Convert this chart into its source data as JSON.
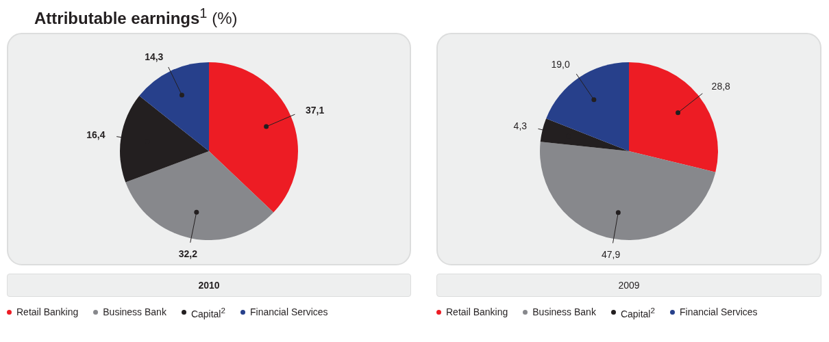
{
  "chart_data": [
    {
      "type": "pie",
      "title": "Attributable earnings$^{1}$ (%)",
      "xlabel": "2010",
      "categories": [
        "Retail Banking",
        "Business Bank",
        "Capital$^{2}$",
        "Financial Services"
      ],
      "values": [
        37.1,
        32.2,
        16.4,
        14.3
      ],
      "value_labels": [
        "37,1",
        "32,2",
        "16,4",
        "14,3"
      ],
      "colors": [
        "#ed1c24",
        "#87888c",
        "#231f20",
        "#27408b"
      ],
      "legend": "bottom"
    },
    {
      "type": "pie",
      "xlabel": "2009",
      "categories": [
        "Retail Banking",
        "Business Bank",
        "Capital$^{2}$",
        "Financial Services"
      ],
      "values": [
        28.8,
        47.9,
        4.3,
        19.0
      ],
      "value_labels": [
        "28,8",
        "47,9",
        "4,3",
        "19,0"
      ],
      "colors": [
        "#ed1c24",
        "#87888c",
        "#231f20",
        "#27408b"
      ],
      "legend": "bottom"
    }
  ]
}
